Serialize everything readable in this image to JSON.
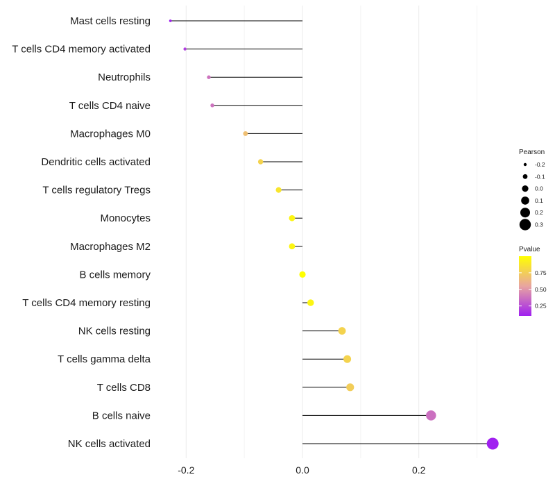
{
  "chart_data": {
    "type": "lollipop",
    "categories": [
      "Mast cells resting",
      "T cells CD4 memory activated",
      "Neutrophils",
      "T cells CD4 naive",
      "Macrophages M0",
      "Dendritic cells activated",
      "T cells regulatory  Tregs ",
      "Monocytes",
      "Macrophages M2",
      "B cells memory",
      "T cells CD4 memory resting",
      "NK cells resting",
      "T cells gamma delta",
      "T cells CD8",
      "B cells naive",
      "NK cells activated"
    ],
    "pearson": [
      -0.227,
      -0.202,
      -0.161,
      -0.155,
      -0.098,
      -0.072,
      -0.041,
      -0.018,
      -0.018,
      0.0,
      0.014,
      0.068,
      0.077,
      0.082,
      0.221,
      0.327
    ],
    "pvalue": [
      0.09,
      0.2,
      0.38,
      0.38,
      0.68,
      0.78,
      0.87,
      0.95,
      0.95,
      1.0,
      0.95,
      0.78,
      0.78,
      0.75,
      0.37,
      0.1
    ],
    "xlim": [
      -0.26,
      0.34
    ],
    "xticks": [
      -0.2,
      0.0,
      0.2
    ],
    "xtick_labels": [
      "-0.2",
      "0.0",
      "0.2"
    ],
    "xminor": [
      -0.1,
      0.1,
      0.3
    ],
    "size_legend": {
      "title": "Pearson",
      "values": [
        -0.2,
        -0.1,
        0.0,
        0.1,
        0.2,
        0.3
      ],
      "labels": [
        "-0.2",
        "-0.1",
        "0.0",
        "0.1",
        "0.2",
        "0.3"
      ]
    },
    "color_legend": {
      "title": "Pvalue",
      "range": [
        0.1,
        1.0
      ],
      "ticks": [
        0.75,
        0.5,
        0.25
      ],
      "tick_labels": [
        "0.75",
        "0.50",
        "0.25"
      ],
      "low_color": "#a020f0",
      "mid_color": "#e8a5a0",
      "high_color": "#ffff00"
    },
    "stem_color": "#000000",
    "grid": true
  }
}
